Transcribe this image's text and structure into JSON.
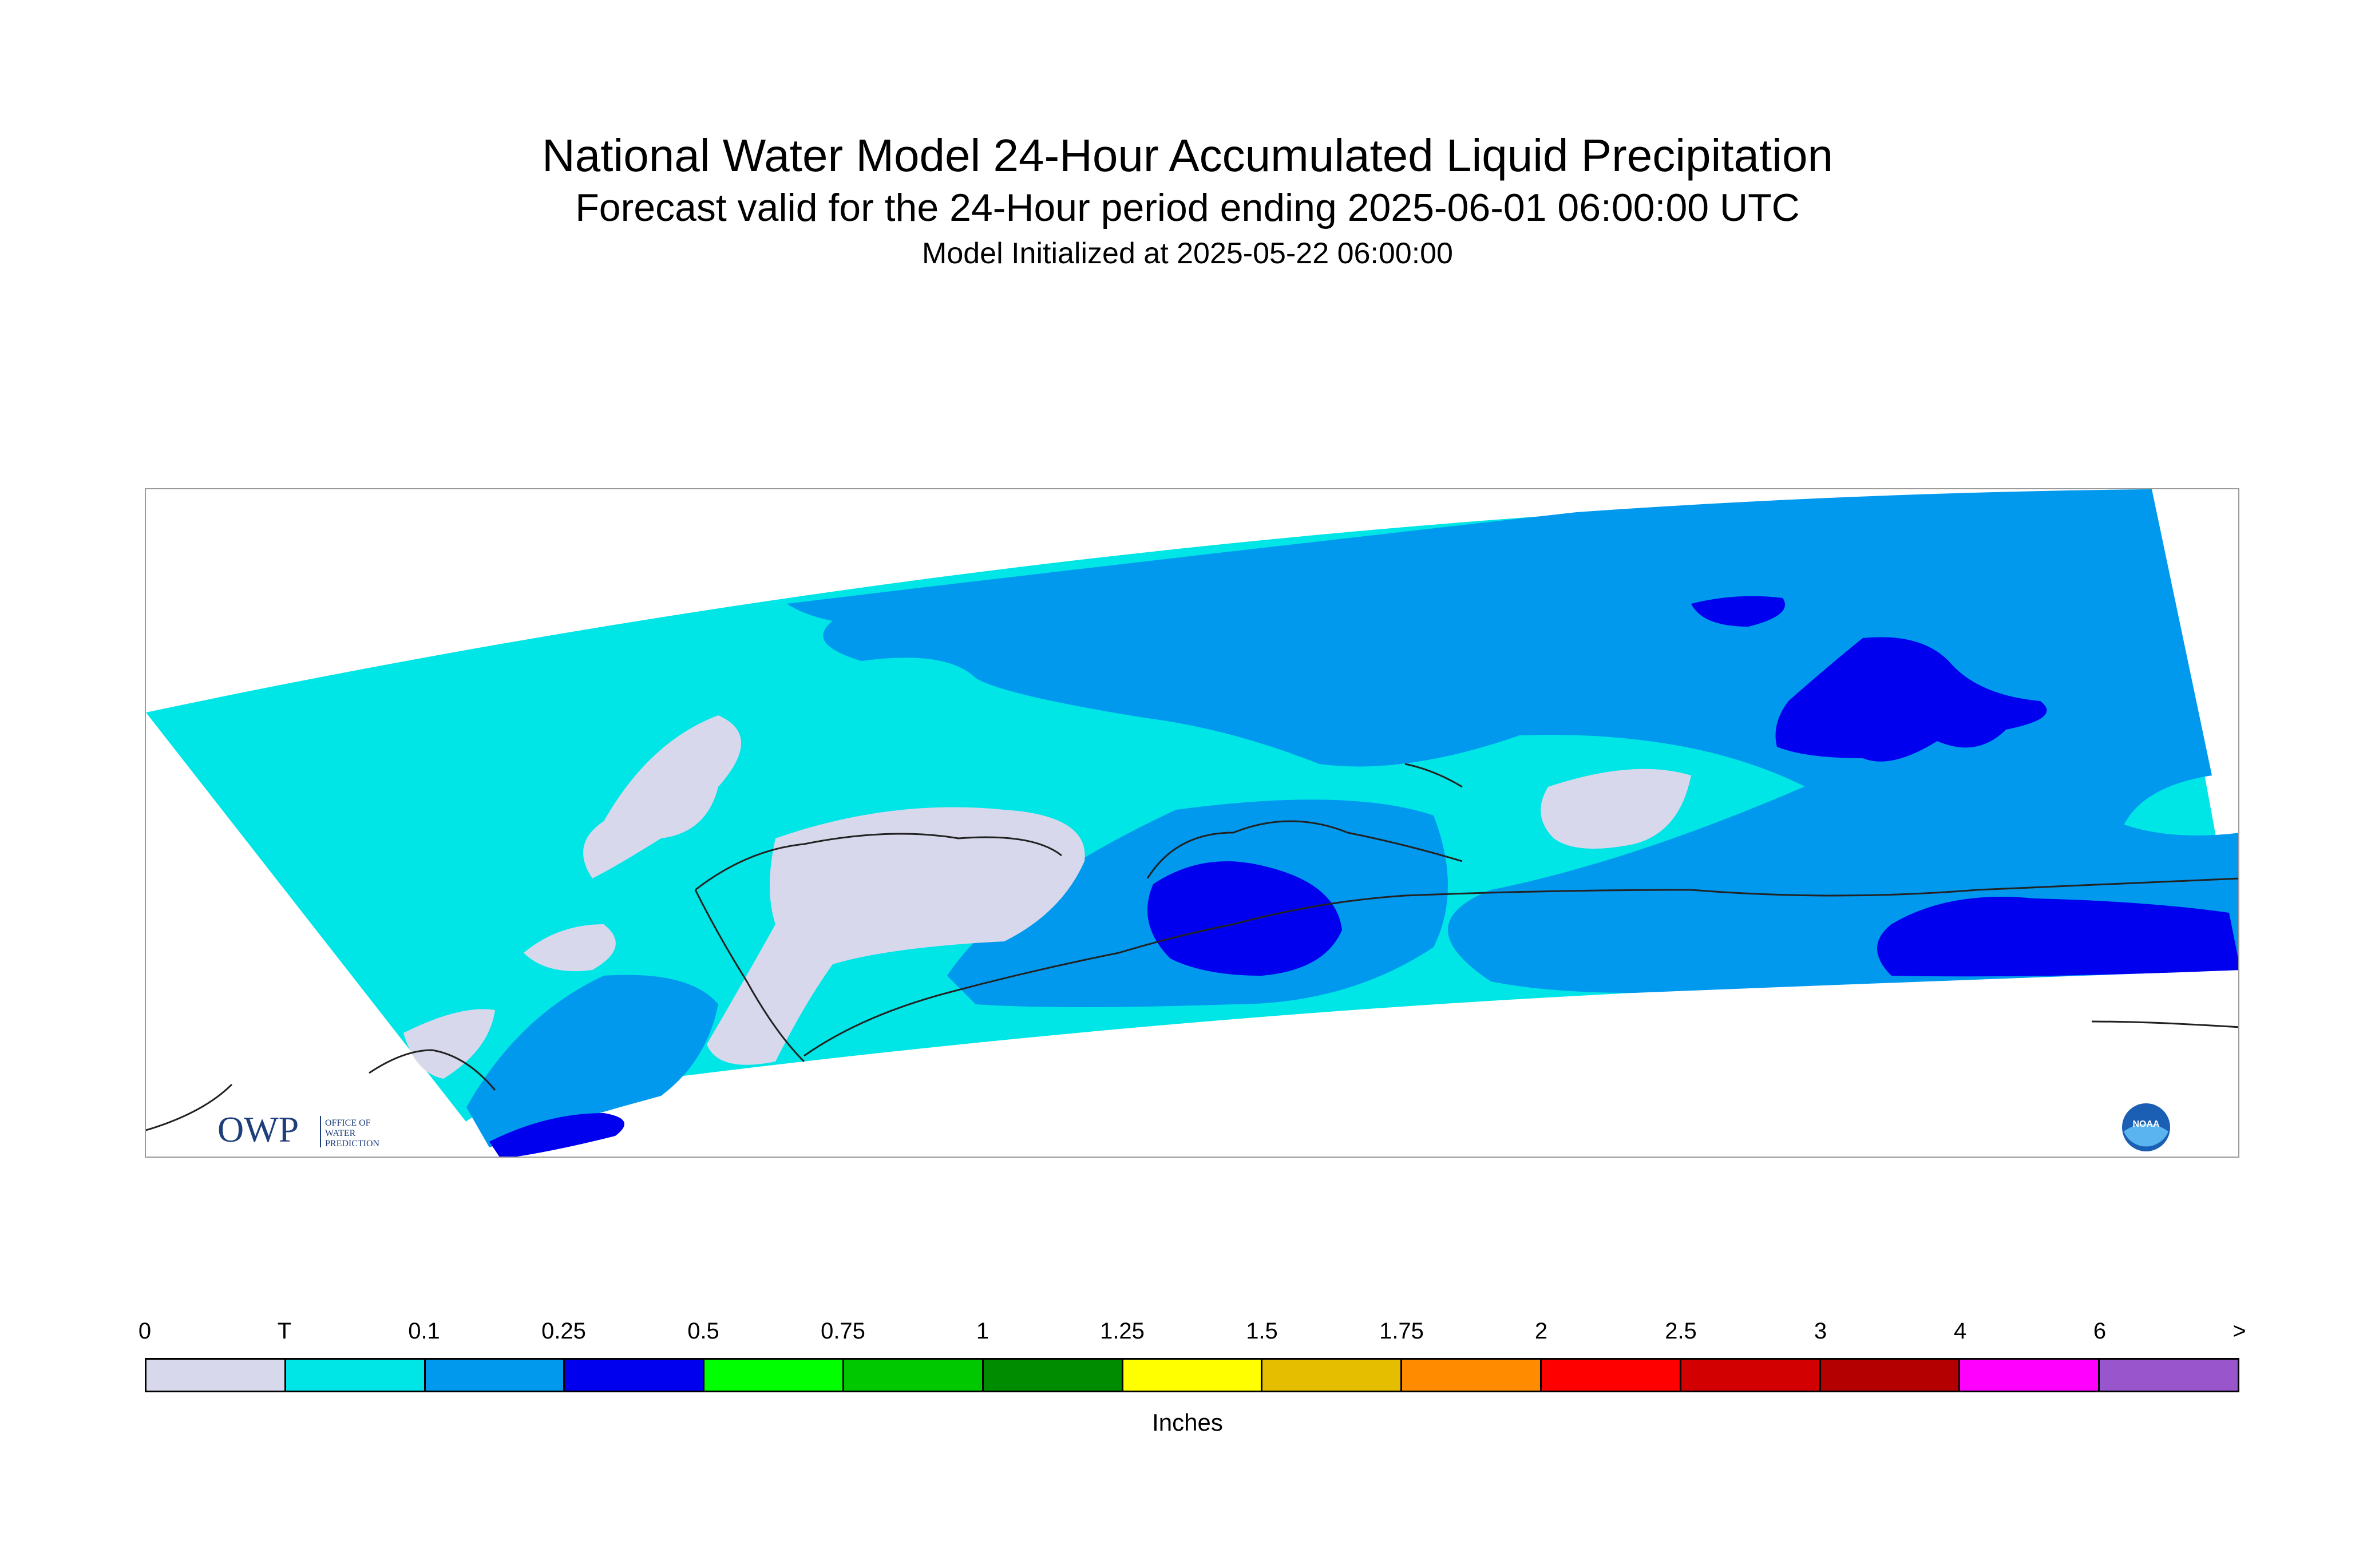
{
  "title": "National Water Model 24-Hour Accumulated Liquid Precipitation",
  "subtitle": "Forecast valid for the 24-Hour period ending 2025-06-01 06:00:00 UTC",
  "init_line": "Model Initialized at 2025-05-22 06:00:00",
  "logos": {
    "owp_text": "OWP",
    "owp_subtext": "OFFICE OF WATER PREDICTION",
    "noaa_text": "NOAA"
  },
  "legend": {
    "units": "Inches",
    "tick_labels": [
      "0",
      "T",
      "0.1",
      "0.25",
      "0.5",
      "0.75",
      "1",
      "1.25",
      "1.5",
      "1.75",
      "2",
      "2.5",
      "3",
      "4",
      "6",
      ">"
    ],
    "colors": [
      "#d8d8ec",
      "#00e5e5",
      "#0099ee",
      "#0000ee",
      "#00ff00",
      "#00c800",
      "#008c00",
      "#ffff00",
      "#e6be00",
      "#ff8c00",
      "#ff0000",
      "#d20000",
      "#b40000",
      "#ff00ff",
      "#9955cc"
    ]
  },
  "map_palette": {
    "zero": "#d8d8ec",
    "trace": "#00e5e5",
    "low": "#0099ee",
    "mid": "#0000ee",
    "coast": "#222222"
  }
}
